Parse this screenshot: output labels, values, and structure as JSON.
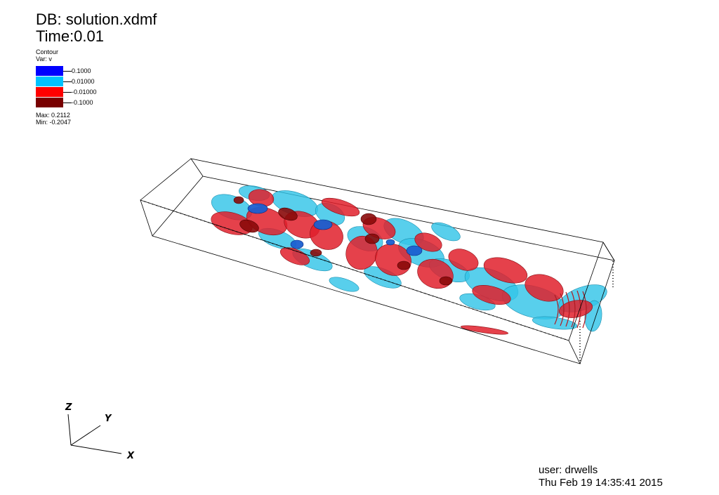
{
  "header": {
    "database": "DB: solution.xdmf",
    "time": "Time:0.01"
  },
  "legend": {
    "plot_type": "Contour",
    "variable": "Var: v",
    "levels": [
      {
        "label": "0.1000",
        "color": "#0000ff"
      },
      {
        "label": "0.01000",
        "color": "#00c3ff"
      },
      {
        "label": "-0.01000",
        "color": "#ff0000"
      },
      {
        "label": "-0.1000",
        "color": "#780000"
      }
    ],
    "max": "Max:  0.2112",
    "min": "Min: -0.2047"
  },
  "triad": {
    "x_label": "X",
    "y_label": "Y",
    "z_label": "Z"
  },
  "footer": {
    "user": "user: drwells",
    "datetime": "Thu Feb  19 14:35:41 2015"
  },
  "colors": {
    "positive_strong": "#0000ff",
    "positive_weak": "#00c3ff",
    "negative_weak": "#ff0000",
    "negative_strong": "#780000",
    "bounding_box": "#000000",
    "background": "#ffffff"
  },
  "icons": [
    "axis-triad-icon"
  ]
}
